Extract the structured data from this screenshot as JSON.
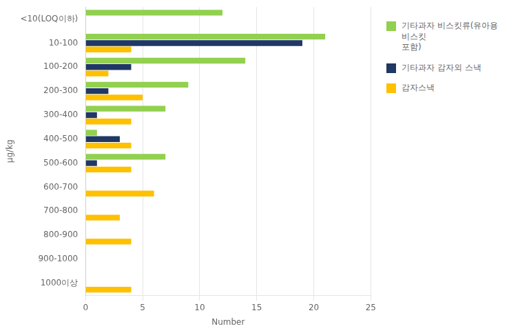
{
  "chart_data": {
    "type": "bar",
    "orientation": "horizontal",
    "categories": [
      "<10(LOQ이하)",
      "10-100",
      "100-200",
      "200-300",
      "300-400",
      "400-500",
      "500-600",
      "600-700",
      "700-800",
      "800-900",
      "900-1000",
      "1000이상"
    ],
    "series": [
      {
        "name": "기타과자 비스킷류(유아용비스킷\n포함)",
        "color": "#92D050",
        "values": [
          12,
          21,
          14,
          9,
          7,
          1,
          7,
          0,
          0,
          0,
          0,
          0
        ]
      },
      {
        "name": "기타과자 감자외 스낵",
        "color": "#1F3864",
        "values": [
          0,
          19,
          4,
          2,
          1,
          3,
          1,
          0,
          0,
          0,
          0,
          0
        ]
      },
      {
        "name": "감자스낵",
        "color": "#FFC000",
        "values": [
          0,
          4,
          2,
          5,
          4,
          4,
          4,
          6,
          3,
          4,
          0,
          4
        ]
      }
    ],
    "xlabel": "Number",
    "ylabel": "μg/kg",
    "xlim": [
      0,
      25
    ],
    "xticks": [
      0,
      5,
      10,
      15,
      20,
      25
    ],
    "grid": true,
    "legend": "right"
  }
}
